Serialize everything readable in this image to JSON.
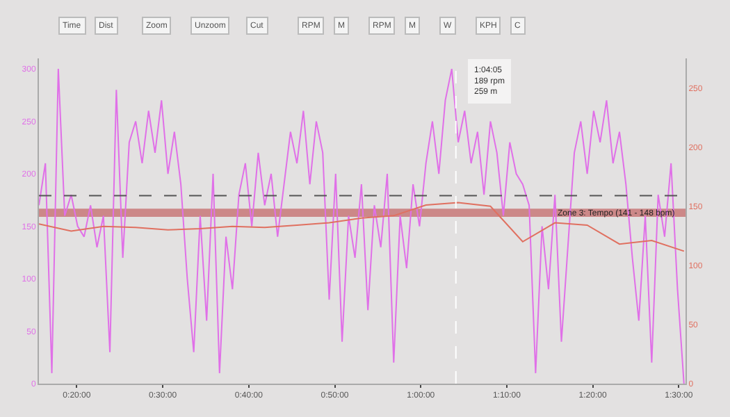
{
  "chart_data": {
    "type": "line",
    "annotations": [
      "Time",
      "Dist",
      "Zoom",
      "Unzoom",
      "Cut",
      "RPM",
      "M",
      "RPM",
      "M",
      "W",
      "KPH",
      "C",
      {
        "text": "1:04:05\n189 rpm\n259 m",
        "x": 1.068,
        "y": 259
      }
    ],
    "xlim": [
      0.26,
      1.513
    ],
    "xticks": [
      {
        "value": 0.3333,
        "label": "0:20:00"
      },
      {
        "value": 0.5,
        "label": "0:30:00"
      },
      {
        "value": 0.6667,
        "label": "0:40:00"
      },
      {
        "value": 0.8333,
        "label": "0:50:00"
      },
      {
        "value": 1.0,
        "label": "1:00:00"
      },
      {
        "value": 1.1667,
        "label": "1:10:00"
      },
      {
        "value": 1.3333,
        "label": "1:20:00"
      },
      {
        "value": 1.5,
        "label": "1:30:00"
      }
    ],
    "ylim": [
      0,
      310
    ],
    "yticks": [
      0,
      50,
      100,
      150,
      200,
      250,
      300
    ],
    "y2lim": [
      0,
      275
    ],
    "y2ticks": [
      0,
      50,
      100,
      150,
      200,
      250
    ],
    "series": [
      {
        "color": "#e070e8",
        "x": [
          0.26,
          0.2725,
          0.285,
          0.2975,
          0.31,
          0.3225,
          0.335,
          0.3475,
          0.36,
          0.3725,
          0.385,
          0.3975,
          0.41,
          0.4225,
          0.435,
          0.4475,
          0.46,
          0.4725,
          0.485,
          0.4975,
          0.51,
          0.5225,
          0.535,
          0.5475,
          0.56,
          0.5725,
          0.585,
          0.5975,
          0.61,
          0.6225,
          0.635,
          0.6475,
          0.66,
          0.6725,
          0.685,
          0.6975,
          0.71,
          0.7225,
          0.735,
          0.7475,
          0.76,
          0.7725,
          0.785,
          0.7975,
          0.81,
          0.8225,
          0.835,
          0.8475,
          0.86,
          0.8725,
          0.885,
          0.8975,
          0.91,
          0.9225,
          0.935,
          0.9475,
          0.96,
          0.9725,
          0.985,
          0.9975,
          1.01,
          1.0225,
          1.035,
          1.0475,
          1.06,
          1.0725,
          1.085,
          1.0975,
          1.11,
          1.1225,
          1.135,
          1.1475,
          1.16,
          1.1725,
          1.185,
          1.1975,
          1.21,
          1.2225,
          1.235,
          1.2475,
          1.26,
          1.2725,
          1.285,
          1.2975,
          1.31,
          1.3225,
          1.335,
          1.3475,
          1.36,
          1.3725,
          1.385,
          1.3975,
          1.41,
          1.4225,
          1.435,
          1.4475,
          1.46,
          1.4725,
          1.485,
          1.4975,
          1.51
        ],
        "values": [
          170,
          210,
          10,
          300,
          160,
          180,
          150,
          140,
          170,
          130,
          160,
          30,
          280,
          120,
          230,
          250,
          210,
          260,
          220,
          270,
          200,
          240,
          190,
          100,
          30,
          160,
          60,
          200,
          10,
          140,
          90,
          180,
          210,
          150,
          220,
          170,
          200,
          140,
          190,
          240,
          210,
          260,
          190,
          250,
          220,
          80,
          200,
          40,
          160,
          120,
          190,
          70,
          170,
          130,
          200,
          20,
          160,
          110,
          190,
          150,
          210,
          250,
          200,
          270,
          300,
          230,
          260,
          210,
          240,
          180,
          250,
          220,
          160,
          230,
          200,
          190,
          170,
          10,
          150,
          90,
          180,
          40,
          130,
          220,
          250,
          200,
          260,
          230,
          270,
          210,
          240,
          190,
          120,
          60,
          160,
          20,
          180,
          140,
          210,
          90,
          0
        ]
      },
      {
        "color": "#e07060",
        "axis": "y2",
        "x": [
          0.26,
          0.3225,
          0.385,
          0.4475,
          0.51,
          0.5725,
          0.635,
          0.6975,
          0.76,
          0.8225,
          0.885,
          0.9475,
          1.01,
          1.0725,
          1.135,
          1.1975,
          1.26,
          1.3225,
          1.385,
          1.4475,
          1.51
        ],
        "values": [
          135,
          129,
          133,
          132,
          130,
          131,
          133,
          132,
          134,
          136,
          140,
          142,
          151,
          153,
          150,
          120,
          136,
          134,
          118,
          121,
          112
        ]
      }
    ],
    "bands": [
      {
        "axis": "y2",
        "from": 141,
        "to": 148,
        "label": "Zone 3: Tempo (141 - 148 bpm)",
        "color": "#c87878"
      }
    ],
    "ref_lines": [
      {
        "axis": "y2",
        "value": 159,
        "line_style": "dashed",
        "color": "#555555"
      },
      {
        "axis": "x",
        "value": 1.068,
        "line_style": "dashed",
        "color": "#ffffff"
      }
    ],
    "grid": false,
    "marker": "none",
    "line_style": "solid"
  }
}
